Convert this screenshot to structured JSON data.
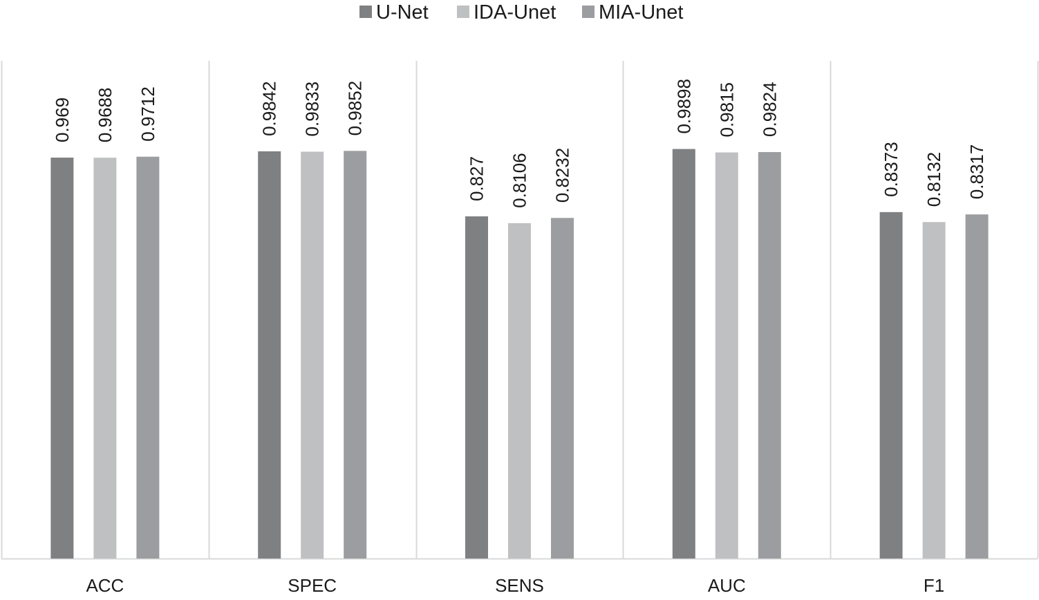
{
  "chart_data": {
    "type": "bar",
    "categories": [
      "ACC",
      "SPEC",
      "SENS",
      "AUC",
      "F1"
    ],
    "series": [
      {
        "name": "U-Net",
        "values": [
          0.969,
          0.9842,
          0.827,
          0.9898,
          0.8373
        ],
        "labels": [
          "0.969",
          "0.9842",
          "0.827",
          "0.9898",
          "0.8373"
        ],
        "color": "#7f8082"
      },
      {
        "name": "IDA-Unet",
        "values": [
          0.9688,
          0.9833,
          0.8106,
          0.9815,
          0.8132
        ],
        "labels": [
          "0.9688",
          "0.9833",
          "0.8106",
          "0.9815",
          "0.8132"
        ],
        "color": "#bfc0c2"
      },
      {
        "name": "MIA-Unet",
        "values": [
          0.9712,
          0.9852,
          0.8232,
          0.9824,
          0.8317
        ],
        "labels": [
          "0.9712",
          "0.9852",
          "0.8232",
          "0.9824",
          "0.8317"
        ],
        "color": "#9c9da0"
      }
    ],
    "legend_position": "top-center",
    "grid": false,
    "category_separators": true,
    "ylim": [
      0,
      1
    ]
  }
}
